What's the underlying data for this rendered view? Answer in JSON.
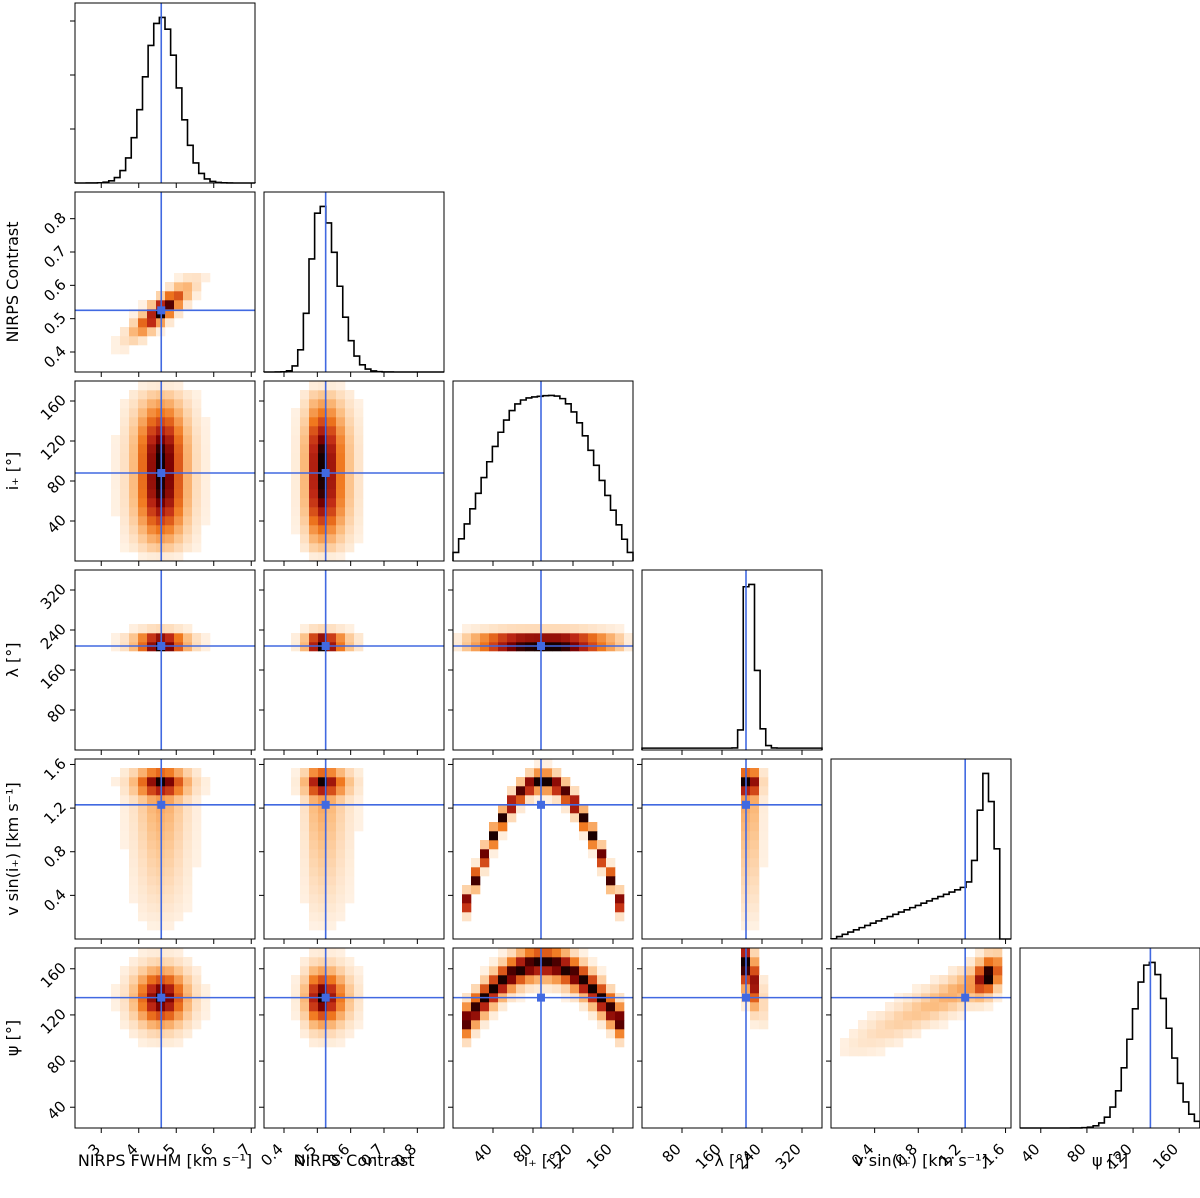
{
  "chart_data": {
    "type": "corner",
    "colors": {
      "truth": "#4169e1",
      "histogram": "#000000",
      "contour": "#000000",
      "density_low": "#fff4e8",
      "density_mid": "#f07a1e",
      "density_high": "#8b0000",
      "density_peak": "#000000"
    },
    "parameters": [
      {
        "key": "fwhm",
        "label": "NIRPS FWHM [km s⁻¹]",
        "range": [
          2.3,
          7.1
        ],
        "ticks": [
          3,
          4,
          5,
          6,
          7
        ],
        "tick_labels": [
          "3",
          "4",
          "5",
          "6",
          "7"
        ],
        "truth": 4.6,
        "sigma": 0.45,
        "shape": "gauss"
      },
      {
        "key": "contrast",
        "label": "NIRPS Contrast",
        "range": [
          0.34,
          0.88
        ],
        "ticks": [
          0.4,
          0.5,
          0.6,
          0.7,
          0.8
        ],
        "tick_labels": [
          "0.4",
          "0.5",
          "0.6",
          "0.7",
          "0.8"
        ],
        "truth": 0.525,
        "sigma": 0.04,
        "shape": "skew"
      },
      {
        "key": "inc",
        "label": "i₊ [°]",
        "range": [
          0,
          180
        ],
        "ticks": [
          40,
          80,
          120,
          160
        ],
        "tick_labels": [
          "40",
          "80",
          "120",
          "160"
        ],
        "truth": 88,
        "shape": "bimodal"
      },
      {
        "key": "lambda",
        "label": "λ [°]",
        "range": [
          0,
          360
        ],
        "ticks": [
          80,
          160,
          240,
          320
        ],
        "tick_labels": [
          "80",
          "160",
          "240",
          "320"
        ],
        "truth": 208,
        "sigma": 12,
        "shape": "narrow"
      },
      {
        "key": "vsini",
        "label": "v sin(i₊) [km s⁻¹]",
        "range": [
          0,
          1.65
        ],
        "ticks": [
          0.4,
          0.8,
          1.2,
          1.6
        ],
        "tick_labels": [
          "0.4",
          "0.8",
          "1.2",
          "1.6"
        ],
        "truth": 1.23,
        "shape": "leftskew"
      },
      {
        "key": "psi",
        "label": "ψ [°]",
        "range": [
          22,
          178
        ],
        "ticks": [
          40,
          80,
          120,
          160
        ],
        "tick_labels": [
          "40",
          "80",
          "120",
          "160"
        ],
        "truth": 135,
        "sigma": 16,
        "shape": "gauss"
      }
    ]
  }
}
